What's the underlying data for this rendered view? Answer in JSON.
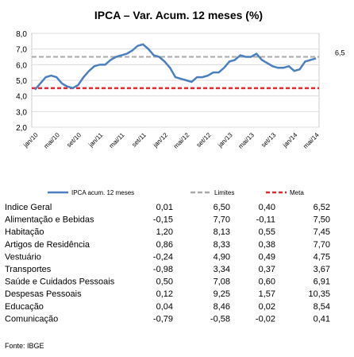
{
  "chart_data": {
    "type": "line",
    "title": "IPCA – Var. Acum. 12 meses (%)",
    "categories": [
      "jan/10",
      null,
      null,
      null,
      "mai/10",
      null,
      null,
      null,
      "set/10",
      null,
      null,
      null,
      "jan/11",
      null,
      null,
      null,
      "mai/11",
      null,
      null,
      null,
      "set/11",
      null,
      null,
      null,
      "jan/12",
      null,
      null,
      null,
      "mai/12",
      null,
      null,
      null,
      "set/12",
      null,
      null,
      null,
      "jan/13",
      null,
      null,
      null,
      "mai/13",
      null,
      null,
      null,
      "set/13",
      null,
      null,
      null,
      "jan/14",
      null,
      null,
      null,
      "mai/14"
    ],
    "series": [
      {
        "name": "IPCA acum. 12 meses",
        "color": "#4a7fc1",
        "values": [
          4.4,
          4.8,
          5.2,
          5.3,
          5.2,
          4.8,
          4.6,
          4.5,
          4.7,
          5.2,
          5.6,
          5.9,
          6.0,
          6.0,
          6.3,
          6.5,
          6.6,
          6.7,
          6.9,
          7.2,
          7.3,
          7.0,
          6.6,
          6.5,
          6.2,
          5.8,
          5.2,
          5.1,
          5.0,
          4.9,
          5.2,
          5.2,
          5.3,
          5.5,
          5.5,
          5.8,
          6.2,
          6.3,
          6.6,
          6.5,
          6.5,
          6.7,
          6.3,
          6.1,
          5.9,
          5.8,
          5.8,
          5.9,
          5.6,
          5.7,
          6.2,
          6.3,
          6.4
        ]
      }
    ],
    "reference_lines": [
      {
        "name": "Limites",
        "value": 6.5,
        "label": "6,5",
        "color": "#aaaaaa"
      },
      {
        "name": "Meta",
        "value": 4.5,
        "color": "#e8262b"
      }
    ],
    "ylim": [
      2,
      8
    ],
    "yticks": [
      {
        "value": 2,
        "label": "2,0"
      },
      {
        "value": 3,
        "label": "3,0"
      },
      {
        "value": 4,
        "label": "4,0"
      },
      {
        "value": 5,
        "label": "5,0"
      },
      {
        "value": 6,
        "label": "6,0"
      },
      {
        "value": 7,
        "label": "7,0"
      },
      {
        "value": 8,
        "label": "8,0"
      }
    ],
    "grid": true
  },
  "table": {
    "rows": [
      [
        "Indice Geral",
        "0,01",
        "6,50",
        "0,40",
        "6,52"
      ],
      [
        "Alimentação e Bebidas",
        "-0,15",
        "7,70",
        "-0,11",
        "7,50"
      ],
      [
        "Habitação",
        "1,20",
        "8,13",
        "0,55",
        "7,45"
      ],
      [
        "Artigos de Residência",
        "0,86",
        "8,33",
        "0,38",
        "7,70"
      ],
      [
        "Vestuário",
        "-0,24",
        "4,90",
        "0,49",
        "4,75"
      ],
      [
        "Transportes",
        "-0,98",
        "3,34",
        "0,37",
        "3,67"
      ],
      [
        "Saúde e Cuidados Pessoais",
        "0,50",
        "7,08",
        "0,60",
        "6,91"
      ],
      [
        "Despesas Pessoais",
        "0,12",
        "9,25",
        "1,57",
        "10,35"
      ],
      [
        "Educação",
        "0,04",
        "8,46",
        "0,02",
        "8,54"
      ],
      [
        "Comunicação",
        "-0,79",
        "-0,58",
        "-0,02",
        "0,41"
      ]
    ]
  },
  "source": "Fonte: IBGE"
}
